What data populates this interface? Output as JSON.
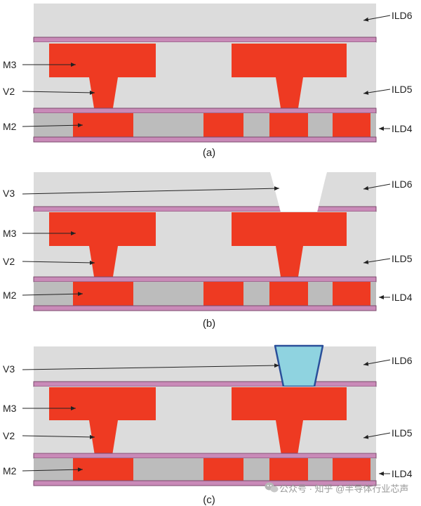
{
  "colors": {
    "background": "#ffffff",
    "dielectric": "#dcdcdc",
    "dielectric_dark": "#bcbcbc",
    "metal": "#ee3a22",
    "liner": "#c98ab8",
    "liner_edge": "#7b4a6d",
    "via_fill": "#8fd3e0",
    "via_edge": "#2a4f9a",
    "arrow": "#222222",
    "watermark": "#9a9a9a"
  },
  "panels": [
    {
      "id": "a",
      "caption": "(a)",
      "labels": {
        "M3": "M3",
        "V2": "V2",
        "M2": "M2",
        "ILD6": "ILD6",
        "ILD5": "ILD5",
        "ILD4": "ILD4"
      },
      "v3_state": "none"
    },
    {
      "id": "b",
      "caption": "(b)",
      "labels": {
        "V3": "V3",
        "M3": "M3",
        "V2": "V2",
        "M2": "M2",
        "ILD6": "ILD6",
        "ILD5": "ILD5",
        "ILD4": "ILD4"
      },
      "v3_state": "etched"
    },
    {
      "id": "c",
      "caption": "(c)",
      "labels": {
        "V3": "V3",
        "M3": "M3",
        "V2": "V2",
        "M2": "M2",
        "ILD6": "ILD6",
        "ILD5": "ILD5",
        "ILD4": "ILD4"
      },
      "v3_state": "filled"
    }
  ],
  "watermark": {
    "icon": "wechat-icon",
    "text": "公众号 · 知乎 @半导体行业芯声"
  }
}
